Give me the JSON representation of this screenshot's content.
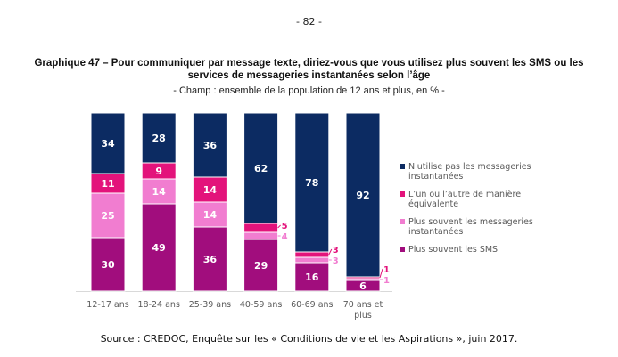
{
  "page_number": "- 82 -",
  "source": "Source : CREDOC, Enquête sur les « Conditions de vie et les Aspirations », juin 2017.",
  "chart_data": {
    "type": "bar",
    "stacked": true,
    "title": "Graphique 47 – Pour communiquer par message texte, diriez-vous que vous utilisez plus souvent les SMS ou les services de messageries instantanées selon l’âge",
    "subtitle": "- Champ : ensemble de la population de 12 ans et plus, en % -",
    "categories": [
      "12-17 ans",
      "18-24 ans",
      "25-39 ans",
      "40-59 ans",
      "60-69 ans",
      "70 ans et plus"
    ],
    "ylim": [
      0,
      100
    ],
    "legend_position": "right",
    "series": [
      {
        "name": "Plus souvent les SMS",
        "color": "#a10d7d",
        "values": [
          30,
          49,
          36,
          29,
          16,
          6
        ]
      },
      {
        "name": "Plus souvent les messageries instantanées",
        "color": "#f17dd0",
        "values": [
          25,
          14,
          14,
          4,
          3,
          1
        ]
      },
      {
        "name": "L’un ou l’autre de manière équivalente",
        "color": "#e3137b",
        "values": [
          11,
          9,
          14,
          5,
          3,
          1
        ]
      },
      {
        "name": "N'utilise pas les messageries instantanées",
        "color": "#0c2b62",
        "values": [
          34,
          28,
          36,
          62,
          78,
          92
        ]
      }
    ]
  }
}
